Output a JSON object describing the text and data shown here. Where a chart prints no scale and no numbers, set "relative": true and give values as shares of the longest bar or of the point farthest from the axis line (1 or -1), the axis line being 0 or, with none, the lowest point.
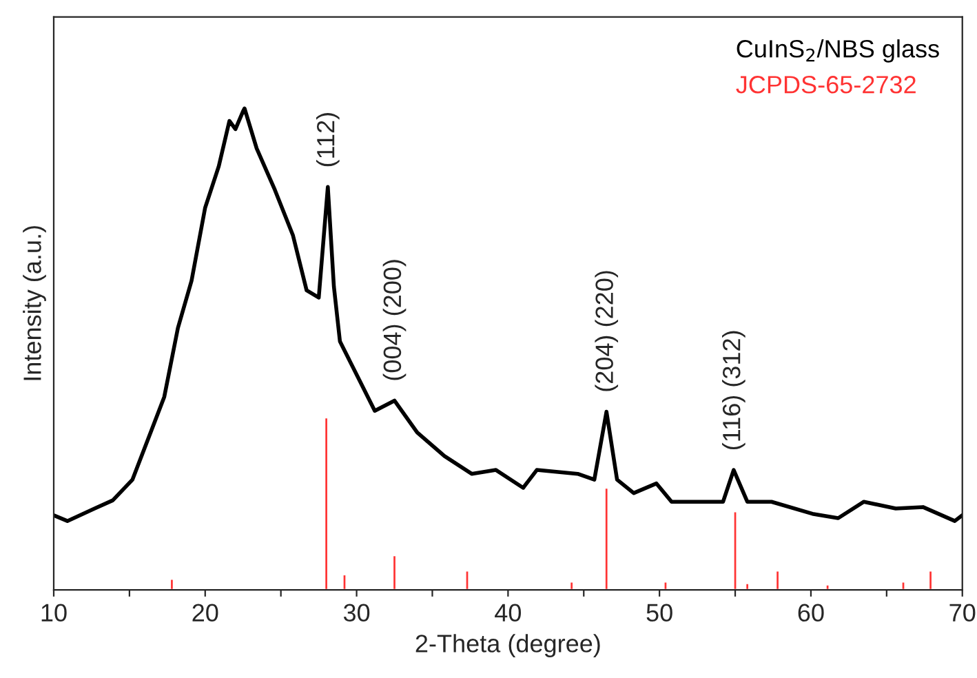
{
  "chart_data": {
    "type": "line",
    "xlabel": "2-Theta (degree)",
    "ylabel": "Intensity (a.u.)",
    "relative": true,
    "xlim": [
      10,
      70
    ],
    "xticks": [
      10,
      {
        "value": 15,
        "label": null
      },
      20,
      {
        "value": 25,
        "label": null
      },
      30,
      {
        "value": 35,
        "label": null
      },
      40,
      {
        "value": 45,
        "label": null
      },
      50,
      {
        "value": 55,
        "label": null
      },
      60,
      {
        "value": 65,
        "label": null
      },
      70
    ],
    "legend": "top right",
    "grid": false,
    "series": [
      {
        "name": "CuInS$_{2}$/NBS glass",
        "color": "#000000",
        "x": [
          10,
          10.9,
          12.7,
          13.9,
          15.2,
          16.4,
          17.3,
          18.2,
          19.1,
          20.0,
          20.9,
          21.6,
          22.0,
          22.5,
          22.6,
          23.4,
          24.6,
          25.8,
          26.7,
          27.5,
          28.1,
          28.5,
          28.9,
          30.1,
          31.2,
          32.5,
          34.0,
          35.8,
          37.6,
          39.2,
          41.0,
          41.9,
          44.6,
          45.7,
          46.5,
          47.2,
          48.3,
          49.8,
          50.8,
          52.8,
          54.2,
          54.9,
          55.8,
          57.4,
          60.1,
          61.8,
          63.5,
          65.6,
          67.4,
          69.5,
          70
        ],
        "values": [
          0.155,
          0.143,
          0.169,
          0.186,
          0.229,
          0.327,
          0.401,
          0.544,
          0.642,
          0.794,
          0.88,
          0.974,
          0.957,
          0.994,
          1.0,
          0.917,
          0.831,
          0.736,
          0.622,
          0.607,
          0.837,
          0.63,
          0.516,
          0.441,
          0.372,
          0.393,
          0.327,
          0.278,
          0.241,
          0.249,
          0.212,
          0.249,
          0.241,
          0.229,
          0.37,
          0.229,
          0.201,
          0.221,
          0.183,
          0.183,
          0.183,
          0.249,
          0.183,
          0.183,
          0.158,
          0.149,
          0.183,
          0.169,
          0.172,
          0.143,
          0.155
        ]
      },
      {
        "name": "JCPDS-65-2732",
        "type": "bar",
        "color": "#ff3333",
        "x": [
          17.8,
          28.0,
          29.2,
          32.5,
          37.3,
          44.2,
          46.5,
          50.4,
          55.0,
          55.8,
          57.8,
          61.1,
          66.1,
          67.9
        ],
        "values": [
          0.023,
          0.358,
          0.032,
          0.072,
          0.04,
          0.017,
          0.212,
          0.017,
          0.163,
          0.014,
          0.04,
          0.011,
          0.017,
          0.04
        ]
      }
    ],
    "annotations": [
      {
        "text": "(112)",
        "x": 28.1,
        "y": 0.837
      },
      {
        "text": "(004) (200)",
        "x": 32.5,
        "y": 0.393
      },
      {
        "text": "(204) (220)",
        "x": 46.5,
        "y": 0.37
      },
      {
        "text": "(116) (312)",
        "x": 54.9,
        "y": 0.249
      }
    ]
  }
}
